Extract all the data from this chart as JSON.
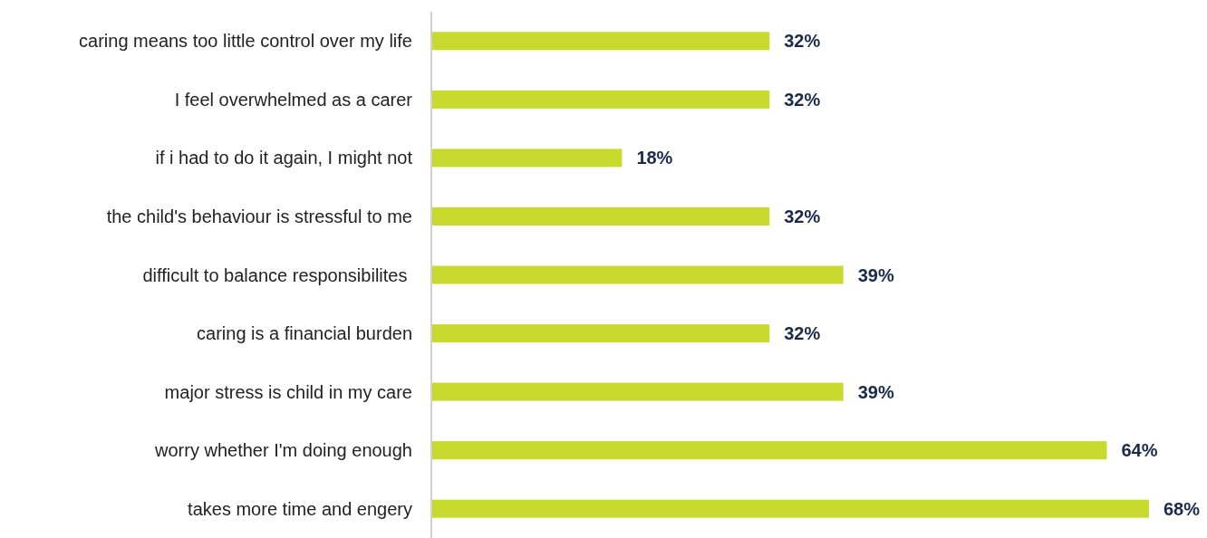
{
  "chart_data": {
    "type": "bar",
    "orientation": "horizontal",
    "categories": [
      "caring means too little control over my life",
      "I feel overwhelmed as a carer",
      "if i had to do it again, I might not",
      "the child's behaviour is stressful to me",
      "difficult to balance responsibilites ",
      "caring is a financial burden",
      "major stress is child in my care",
      "worry whether I'm doing enough",
      "takes more time and engery"
    ],
    "values": [
      32,
      32,
      18,
      32,
      39,
      32,
      39,
      64,
      68
    ],
    "value_labels": [
      "32%",
      "32%",
      "18%",
      "32%",
      "39%",
      "32%",
      "39%",
      "64%",
      "68%"
    ],
    "color": "#c8da2e"
  }
}
